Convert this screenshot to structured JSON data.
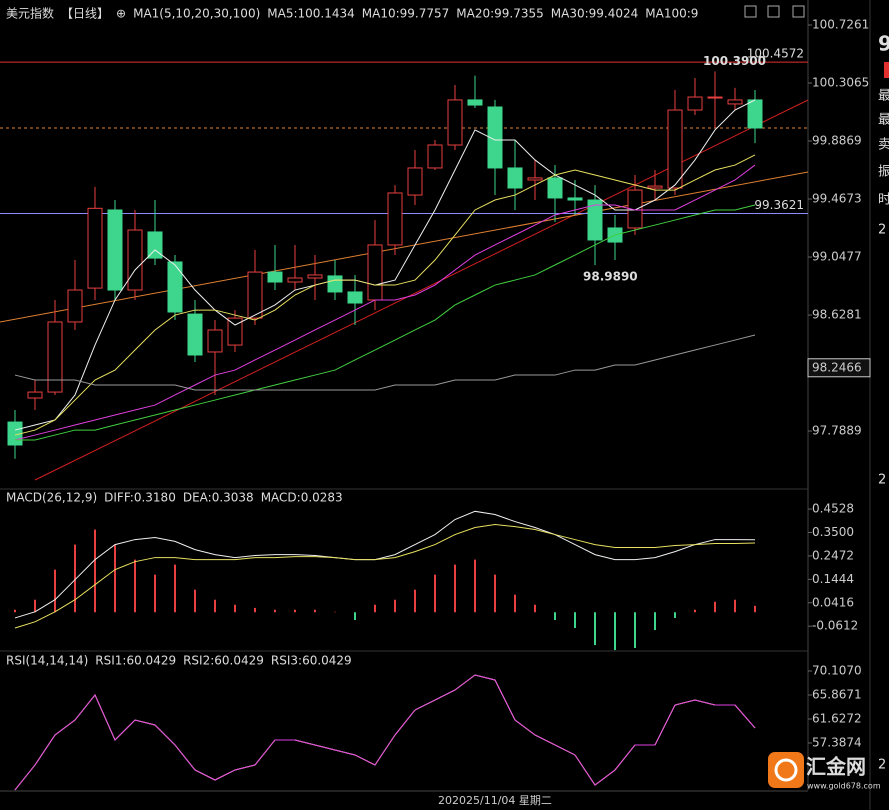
{
  "header": {
    "title": "美元指数",
    "period": "【日线】",
    "icon": "⊕"
  },
  "xaxis_labels": [
    "20",
    "2025/11/04 星期二"
  ],
  "side_panel": [
    "9",
    "最",
    "最",
    "卖",
    "振",
    "时",
    "2",
    "2",
    "2"
  ],
  "logo": {
    "text": "汇金网",
    "url": "www.gold678.com"
  },
  "chart_data": [
    {
      "type": "candlestick",
      "indicator": "MA1(5,10,20,30,100)",
      "up_color": "#e84040",
      "down_color": "#3dd68c",
      "ylim": [
        97.377,
        100.849
      ],
      "yticks": [
        100.7261,
        100.3065,
        99.8869,
        99.4673,
        99.0477,
        98.6281,
        97.7889
      ],
      "cursor_value": 98.2466,
      "open": [
        97.854,
        98.028,
        98.071,
        98.578,
        98.823,
        99.388,
        98.809,
        99.229,
        99.012,
        98.635,
        98.361,
        98.411,
        98.606,
        98.939,
        98.867,
        98.896,
        98.911,
        98.795,
        98.737,
        99.135,
        99.496,
        99.692,
        99.858,
        100.184,
        100.133,
        99.692,
        99.605,
        99.62,
        99.475,
        99.46,
        99.258,
        99.258,
        99.547,
        99.547,
        100.111,
        100.198,
        100.155,
        100.184
      ],
      "high": [
        97.941,
        98.158,
        98.737,
        99.026,
        99.5549,
        99.46,
        99.388,
        99.46,
        99.062,
        98.737,
        98.592,
        98.664,
        99.099,
        99.135,
        99.135,
        99.062,
        99.026,
        98.918,
        99.315,
        99.568,
        99.822,
        99.894,
        100.292,
        100.3599,
        100.184,
        99.894,
        99.75,
        99.713,
        99.605,
        99.568,
        99.352,
        99.641,
        99.677,
        100.256,
        100.343,
        100.39,
        100.271,
        100.256
      ],
      "low": [
        97.5889,
        97.941,
        98.05,
        98.52,
        98.737,
        98.737,
        98.737,
        98.99,
        98.592,
        98.288,
        98.05,
        98.361,
        98.556,
        98.809,
        98.809,
        98.737,
        98.737,
        98.556,
        98.664,
        99.062,
        99.424,
        99.677,
        99.822,
        100.126,
        99.496,
        99.388,
        99.46,
        99.301,
        99.352,
        98.989,
        99.026,
        99.207,
        99.46,
        99.496,
        100.075,
        99.981,
        100.111,
        99.872
      ],
      "close": [
        97.688,
        98.071,
        98.578,
        98.809,
        99.4,
        98.809,
        99.243,
        99.04,
        98.65,
        98.339,
        98.52,
        98.606,
        98.939,
        98.867,
        98.896,
        98.918,
        98.795,
        98.715,
        99.135,
        99.511,
        99.692,
        99.858,
        100.184,
        100.147,
        99.692,
        99.547,
        99.62,
        99.475,
        99.46,
        99.171,
        99.156,
        99.532,
        99.561,
        100.111,
        100.205,
        100.205,
        100.184,
        99.981
      ],
      "extreme_labels": [
        {
          "value": 97.5889,
          "color": "#7ee0a0"
        },
        {
          "value": 99.5549,
          "color": "#ff5050"
        },
        {
          "value": 100.3599,
          "color": "#ff5050"
        },
        {
          "value": 100.39,
          "label": "100.3900",
          "color": "#ff5050"
        },
        {
          "value": 98.989,
          "label": "98.9890",
          "color": "#7ee0a0"
        }
      ],
      "hlines": [
        {
          "value": 100.4572,
          "color": "#e03030"
        },
        {
          "value": 99.3621,
          "color": "#8c8cff"
        }
      ],
      "series": [
        {
          "name": "MA5:100.1434",
          "color": "#f0f0f0",
          "values": [
            97.796,
            97.833,
            97.869,
            98.05,
            98.411,
            98.737,
            98.954,
            99.099,
            98.99,
            98.809,
            98.664,
            98.556,
            98.628,
            98.701,
            98.809,
            98.845,
            98.881,
            98.881,
            98.845,
            98.881,
            99.135,
            99.388,
            99.677,
            99.967,
            99.894,
            99.894,
            99.75,
            99.641,
            99.569,
            99.496,
            99.388,
            99.388,
            99.46,
            99.569,
            99.75,
            99.967,
            100.111,
            100.184
          ]
        },
        {
          "name": "MA10:99.7757",
          "color": "#e8e060",
          "values": [
            97.76,
            97.796,
            97.869,
            98.013,
            98.158,
            98.23,
            98.375,
            98.52,
            98.628,
            98.664,
            98.664,
            98.628,
            98.592,
            98.664,
            98.773,
            98.845,
            98.881,
            98.881,
            98.845,
            98.845,
            98.881,
            99.026,
            99.207,
            99.388,
            99.46,
            99.496,
            99.569,
            99.641,
            99.677,
            99.641,
            99.605,
            99.569,
            99.532,
            99.532,
            99.605,
            99.677,
            99.713,
            99.786
          ]
        },
        {
          "name": "MA20:99.7355",
          "color": "#e040e0",
          "values": [
            97.724,
            97.76,
            97.796,
            97.833,
            97.869,
            97.905,
            97.941,
            97.977,
            98.05,
            98.122,
            98.194,
            98.23,
            98.303,
            98.375,
            98.447,
            98.52,
            98.592,
            98.664,
            98.737,
            98.737,
            98.773,
            98.845,
            98.954,
            99.062,
            99.135,
            99.207,
            99.279,
            99.352,
            99.388,
            99.424,
            99.424,
            99.388,
            99.388,
            99.388,
            99.46,
            99.532,
            99.605,
            99.713
          ]
        },
        {
          "name": "MA30:99.4024",
          "color": "#40d040",
          "values": [
            97.724,
            97.724,
            97.76,
            97.796,
            97.796,
            97.833,
            97.869,
            97.905,
            97.941,
            97.977,
            98.013,
            98.05,
            98.086,
            98.122,
            98.158,
            98.194,
            98.23,
            98.303,
            98.375,
            98.447,
            98.52,
            98.592,
            98.701,
            98.773,
            98.845,
            98.881,
            98.918,
            98.99,
            99.062,
            99.135,
            99.207,
            99.243,
            99.279,
            99.315,
            99.352,
            99.388,
            99.388,
            99.424
          ]
        },
        {
          "name": "MA100:9",
          "color": "#9a9a9a",
          "values": [
            98.194,
            98.158,
            98.158,
            98.158,
            98.122,
            98.122,
            98.122,
            98.122,
            98.122,
            98.086,
            98.086,
            98.086,
            98.086,
            98.086,
            98.086,
            98.086,
            98.086,
            98.086,
            98.086,
            98.122,
            98.122,
            98.122,
            98.158,
            98.158,
            98.158,
            98.194,
            98.194,
            98.194,
            98.23,
            98.23,
            98.267,
            98.267,
            98.303,
            98.339,
            98.375,
            98.411,
            98.447,
            98.484
          ]
        }
      ]
    },
    {
      "type": "macd",
      "title": "MACD(26,12,9)",
      "ylim": [
        -0.1657,
        0.5366
      ],
      "yticks": [
        0.4528,
        {
          "value": 0.35,
          "label": "0.3500"
        },
        0.2472,
        0.1444,
        0.0416,
        -0.0612
      ],
      "series": [
        {
          "name": "DIFF:0.3180",
          "color": "#f0f0f0",
          "values": [
            -0.025,
            0.002,
            0.055,
            0.143,
            0.231,
            0.297,
            0.319,
            0.328,
            0.311,
            0.275,
            0.253,
            0.24,
            0.249,
            0.253,
            0.253,
            0.249,
            0.24,
            0.231,
            0.231,
            0.253,
            0.297,
            0.341,
            0.407,
            0.443,
            0.429,
            0.398,
            0.372,
            0.341,
            0.297,
            0.253,
            0.231,
            0.231,
            0.24,
            0.266,
            0.297,
            0.319,
            0.319,
            0.318
          ]
        },
        {
          "name": "DEA:0.3038",
          "color": "#e8e060",
          "values": [
            -0.069,
            -0.042,
            0.002,
            0.055,
            0.121,
            0.187,
            0.222,
            0.24,
            0.24,
            0.231,
            0.231,
            0.231,
            0.24,
            0.24,
            0.244,
            0.244,
            0.24,
            0.231,
            0.231,
            0.24,
            0.266,
            0.297,
            0.341,
            0.372,
            0.385,
            0.376,
            0.363,
            0.341,
            0.319,
            0.297,
            0.284,
            0.284,
            0.284,
            0.293,
            0.297,
            0.302,
            0.302,
            0.3038
          ]
        }
      ],
      "histogram": {
        "name": "MACD:0.0283",
        "color": "#e040e0",
        "up_color": "#e84040",
        "down_color": "#3dd68c",
        "values": [
          0.011,
          0.055,
          0.187,
          0.297,
          0.363,
          0.297,
          0.231,
          0.165,
          0.209,
          0.099,
          0.055,
          0.033,
          0.019,
          0.011,
          0.011,
          0.011,
          0.002,
          -0.034,
          0.033,
          0.055,
          0.099,
          0.165,
          0.209,
          0.231,
          0.165,
          0.077,
          0.033,
          -0.034,
          -0.069,
          -0.144,
          -0.166,
          -0.157,
          -0.078,
          -0.025,
          0.011,
          0.046,
          0.055,
          0.0283
        ]
      }
    },
    {
      "type": "line",
      "title": "RSI(14,14,14)",
      "ylim": [
        49.085,
        73.463
      ],
      "yticks": [
        {
          "value": 70.107,
          "label": "70.1070"
        },
        65.8671,
        61.6272,
        57.3874
      ],
      "series": [
        {
          "name": "RSI1:60.0429",
          "color": "#f0f0f0",
          "values": [
            49.09,
            53.5,
            58.8,
            61.45,
            65.87,
            57.92,
            61.45,
            60.57,
            57.04,
            52.62,
            50.85,
            52.62,
            53.5,
            57.92,
            57.92,
            57.04,
            56.15,
            55.27,
            53.5,
            58.8,
            63.22,
            64.98,
            66.75,
            69.4,
            68.52,
            61.45,
            58.8,
            57.04,
            55.27,
            49.97,
            52.62,
            57.04,
            57.04,
            64.1,
            64.98,
            64.1,
            64.1,
            60.0429
          ]
        },
        {
          "name": "RSI2:60.0429",
          "color": "#e8e060",
          "values": [
            49.09,
            53.5,
            58.8,
            61.45,
            65.87,
            57.92,
            61.45,
            60.57,
            57.04,
            52.62,
            50.85,
            52.62,
            53.5,
            57.92,
            57.92,
            57.04,
            56.15,
            55.27,
            53.5,
            58.8,
            63.22,
            64.98,
            66.75,
            69.4,
            68.52,
            61.45,
            58.8,
            57.04,
            55.27,
            49.97,
            52.62,
            57.04,
            57.04,
            64.1,
            64.98,
            64.1,
            64.1,
            60.0429
          ]
        },
        {
          "name": "RSI3:60.0429",
          "color": "#e040e0",
          "values": [
            49.09,
            53.5,
            58.8,
            61.45,
            65.87,
            57.92,
            61.45,
            60.57,
            57.04,
            52.62,
            50.85,
            52.62,
            53.5,
            57.92,
            57.92,
            57.04,
            56.15,
            55.27,
            53.5,
            58.8,
            63.22,
            64.98,
            66.75,
            69.4,
            68.52,
            61.45,
            58.8,
            57.04,
            55.27,
            49.97,
            52.62,
            57.04,
            57.04,
            64.1,
            64.98,
            64.1,
            64.1,
            60.0429
          ]
        }
      ]
    }
  ]
}
